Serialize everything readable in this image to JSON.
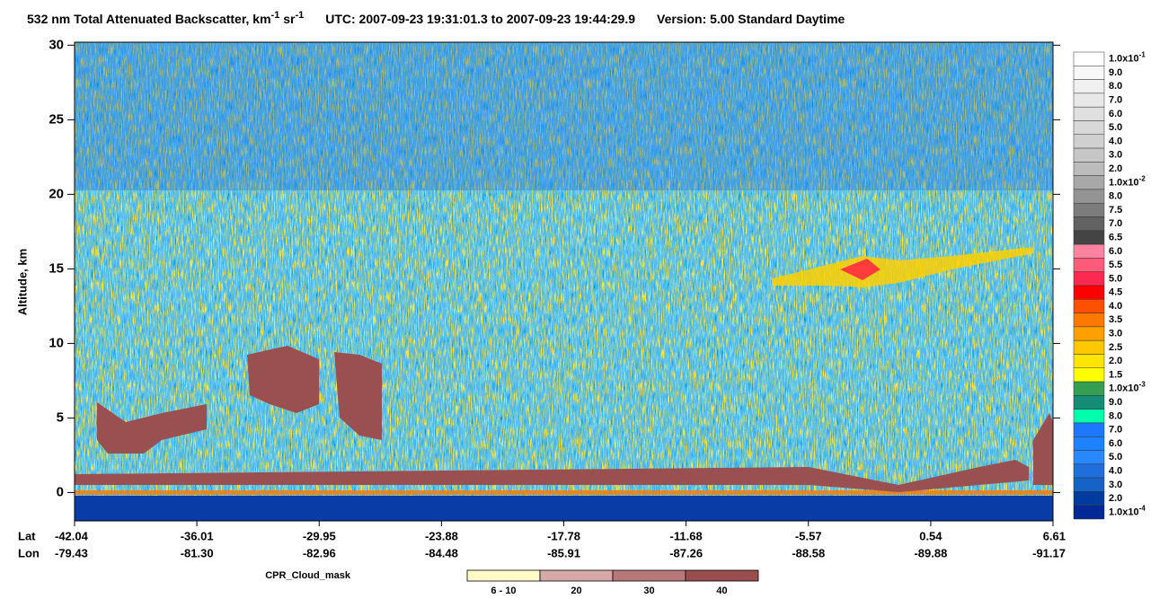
{
  "chart_data": {
    "type": "heatmap",
    "title": {
      "text": "532 nm Total Attenuated Backscatter, km",
      "sup1": "-1",
      "mid": " sr",
      "sup2": "-1",
      "utc": "UTC:  2007-09-23 19:31:01.3  to  2007-09-23 19:44:29.9",
      "version": "Version: 5.00  Standard  Daytime"
    },
    "y_label": "Altitude, km",
    "ylim": [
      -1.9,
      30.2
    ],
    "yticks": [
      0,
      5,
      10,
      15,
      20,
      25,
      30
    ],
    "x_row_labels": [
      "Lat",
      "Lon"
    ],
    "categories": [
      "-42.04",
      "-36.01",
      "-29.95",
      "-23.88",
      "-17.78",
      "-11.68",
      "-5.57",
      "0.54",
      "6.61"
    ],
    "lon": [
      "-79.43",
      "-81.30",
      "-82.96",
      "-84.48",
      "-85.91",
      "-87.26",
      "-88.58",
      "-89.88",
      "-91.17"
    ],
    "colorbar": [
      {
        "base": "1.0x10",
        "exp": "-1",
        "color": "#ffffff"
      },
      {
        "base": "9.0",
        "color": "#f8f8f8"
      },
      {
        "base": "8.0",
        "color": "#f0f0f0"
      },
      {
        "base": "7.0",
        "color": "#e8e8e8"
      },
      {
        "base": "6.0",
        "color": "#e0e0e0"
      },
      {
        "base": "5.0",
        "color": "#d8d8d8"
      },
      {
        "base": "4.0",
        "color": "#d0d0d0"
      },
      {
        "base": "3.0",
        "color": "#c6c6c6"
      },
      {
        "base": "2.0",
        "color": "#bcbcbc"
      },
      {
        "base": "1.0x10",
        "exp": "-2",
        "color": "#a8a8a8"
      },
      {
        "base": "8.0",
        "color": "#949494"
      },
      {
        "base": "7.5",
        "color": "#7c7c7c"
      },
      {
        "base": "7.0",
        "color": "#626262"
      },
      {
        "base": "6.5",
        "color": "#444444"
      },
      {
        "base": "6.0",
        "color": "#ff82a0"
      },
      {
        "base": "5.5",
        "color": "#ff5a78"
      },
      {
        "base": "5.0",
        "color": "#ff2850"
      },
      {
        "base": "4.5",
        "color": "#ff0000"
      },
      {
        "base": "4.0",
        "color": "#ff5000"
      },
      {
        "base": "3.5",
        "color": "#ff7800"
      },
      {
        "base": "3.0",
        "color": "#ffa000"
      },
      {
        "base": "2.5",
        "color": "#ffc800"
      },
      {
        "base": "2.0",
        "color": "#ffe600"
      },
      {
        "base": "1.5",
        "color": "#ffff00"
      },
      {
        "base": "1.0x10",
        "exp": "-3",
        "color": "#32a050"
      },
      {
        "base": "9.0",
        "color": "#148c78"
      },
      {
        "base": "8.0",
        "color": "#00ffaa"
      },
      {
        "base": "7.0",
        "color": "#1e78ff"
      },
      {
        "base": "6.0",
        "color": "#1e82ff"
      },
      {
        "base": "5.0",
        "color": "#2888ff"
      },
      {
        "base": "4.0",
        "color": "#1e6edc"
      },
      {
        "base": "3.0",
        "color": "#1464c8"
      },
      {
        "base": "2.0",
        "color": "#003ca0"
      },
      {
        "base": "1.0x10",
        "exp": "-4",
        "color": "#002896"
      }
    ],
    "cpr_legend": {
      "title": "CPR_Cloud_mask",
      "labels": [
        "6 - 10",
        "20",
        "30",
        "40"
      ],
      "colors": [
        "#fffac8",
        "#d8a8a8",
        "#b87878",
        "#9a4e4e"
      ]
    }
  }
}
